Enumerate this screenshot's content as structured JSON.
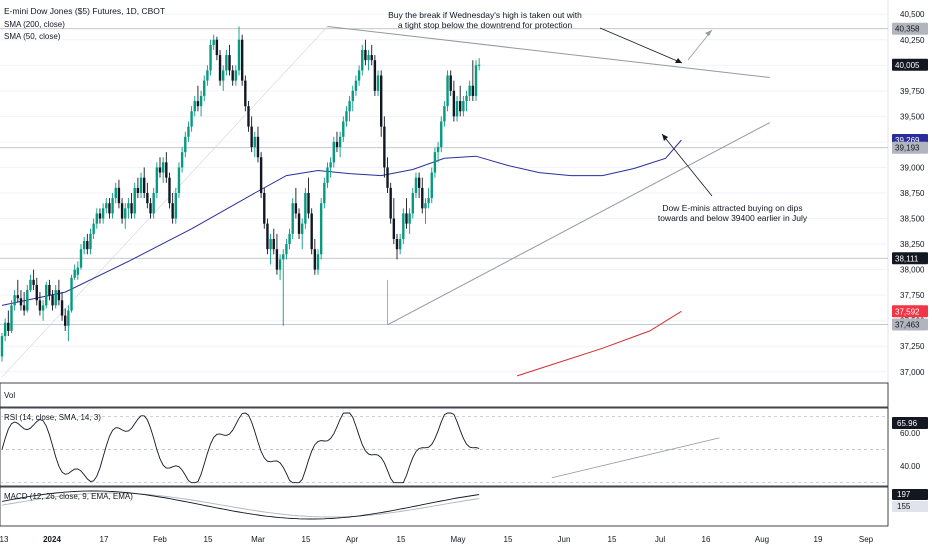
{
  "header": {
    "title": "E-mini Dow Jones ($5) Futures, 1D, CBOT",
    "sma200_label": "SMA (200, close)",
    "sma50_label": "SMA (50, close)"
  },
  "annotations": {
    "top_line1": "Buy the break if Wednesday's high is taken out with",
    "top_line2": "a tight stop below the downtrend for protection",
    "bottom_line1": "Dow E-minis attracted buying on dips",
    "bottom_line2": "towards and below 39400 earlier in July"
  },
  "panels": {
    "vol_label": "Vol",
    "rsi_label": "RSI (14, close, SMA, 14, 3)",
    "rsi_value": "65.96",
    "rsi_ticks": [
      "60.00",
      "40.00"
    ],
    "macd_label": "MACD (12, 26, close, 9, EMA, EMA)",
    "macd_value": "197",
    "signal_value": "155"
  },
  "colors": {
    "up": "#089981",
    "down": "#131722",
    "sma50": "#2a2e9b",
    "sma200": "#d32f2f",
    "trendline": "#9598a1"
  },
  "chart_data": {
    "type": "candlestick",
    "title": "E-mini Dow Jones ($5) Futures, 1D, CBOT",
    "ylim": [
      36900,
      40600
    ],
    "y_ticks": [
      "40,500",
      "40,250",
      "40,000",
      "39,750",
      "39,500",
      "39,250",
      "39,000",
      "38,750",
      "38,500",
      "38,250",
      "38,000",
      "37,750",
      "37,500",
      "37,250",
      "37,000"
    ],
    "price_tags": [
      {
        "label": "40,358",
        "value": 40358,
        "color": "#b2b5be"
      },
      {
        "label": "40,005",
        "value": 40005,
        "color": "#131722"
      },
      {
        "label": "39,269",
        "value": 39269,
        "color": "#2a2e9b"
      },
      {
        "label": "39,193",
        "value": 39193,
        "color": "#b2b5be"
      },
      {
        "label": "38,111",
        "value": 38111,
        "color": "#131722"
      },
      {
        "label": "37,592",
        "value": 37592,
        "color": "#f23645"
      },
      {
        "label": "37,463",
        "value": 37463,
        "color": "#b2b5be"
      }
    ],
    "horizontal_levels": [
      40358,
      39193,
      38111,
      37463
    ],
    "x_ticks": [
      "13",
      "2024",
      "17",
      "Feb",
      "15",
      "Mar",
      "15",
      "Apr",
      "15",
      "May",
      "15",
      "Jun",
      "15",
      "Jul",
      "16",
      "Aug",
      "19",
      "Sep"
    ],
    "trendlines": [
      {
        "name": "downtrend",
        "from": [
          40380,
          103
        ],
        "to": [
          39880,
          243
        ]
      },
      {
        "name": "uptrend",
        "from": [
          37460,
          122
        ],
        "to": [
          39440,
          243
        ]
      }
    ],
    "sma50": [
      [
        0,
        37650
      ],
      [
        20,
        37780
      ],
      [
        40,
        38080
      ],
      [
        60,
        38400
      ],
      [
        80,
        38750
      ],
      [
        90,
        38920
      ],
      [
        100,
        38970
      ],
      [
        110,
        38940
      ],
      [
        120,
        38920
      ],
      [
        130,
        38980
      ],
      [
        140,
        39090
      ],
      [
        150,
        39110
      ],
      [
        160,
        39020
      ],
      [
        170,
        38950
      ],
      [
        180,
        38920
      ],
      [
        190,
        38920
      ],
      [
        200,
        38990
      ],
      [
        210,
        39090
      ],
      [
        215,
        39269
      ]
    ],
    "sma200": [
      [
        163,
        36960
      ],
      [
        175,
        37080
      ],
      [
        190,
        37230
      ],
      [
        205,
        37400
      ],
      [
        215,
        37592
      ]
    ],
    "candles": [
      [
        37150,
        37380,
        37100,
        37350
      ],
      [
        37350,
        37520,
        37300,
        37480
      ],
      [
        37480,
        37600,
        37350,
        37400
      ],
      [
        37400,
        37700,
        37380,
        37650
      ],
      [
        37650,
        37800,
        37600,
        37750
      ],
      [
        37750,
        37900,
        37680,
        37720
      ],
      [
        37720,
        37800,
        37600,
        37650
      ],
      [
        37650,
        37780,
        37550,
        37600
      ],
      [
        37600,
        37850,
        37580,
        37800
      ],
      [
        37800,
        37950,
        37780,
        37900
      ],
      [
        37900,
        38000,
        37800,
        37850
      ],
      [
        37850,
        37920,
        37650,
        37700
      ],
      [
        37700,
        37780,
        37550,
        37600
      ],
      [
        37600,
        37700,
        37500,
        37650
      ],
      [
        37650,
        37880,
        37620,
        37850
      ],
      [
        37850,
        37900,
        37700,
        37750
      ],
      [
        37750,
        37800,
        37600,
        37650
      ],
      [
        37650,
        37850,
        37620,
        37800
      ],
      [
        37800,
        37900,
        37650,
        37700
      ],
      [
        37700,
        37780,
        37500,
        37550
      ],
      [
        37550,
        37620,
        37400,
        37450
      ],
      [
        37450,
        37650,
        37300,
        37600
      ],
      [
        37600,
        37950,
        37580,
        37920
      ],
      [
        37920,
        38050,
        37900,
        38000
      ],
      [
        37950,
        38080,
        37900,
        38020
      ],
      [
        38020,
        38250,
        38000,
        38200
      ],
      [
        38200,
        38320,
        38150,
        38280
      ],
      [
        38280,
        38350,
        38150,
        38200
      ],
      [
        38200,
        38400,
        38150,
        38350
      ],
      [
        38350,
        38500,
        38300,
        38450
      ],
      [
        38450,
        38600,
        38400,
        38550
      ],
      [
        38550,
        38600,
        38450,
        38500
      ],
      [
        38500,
        38650,
        38450,
        38600
      ],
      [
        38600,
        38700,
        38550,
        38650
      ],
      [
        38650,
        38700,
        38500,
        38550
      ],
      [
        38550,
        38750,
        38500,
        38700
      ],
      [
        38700,
        38850,
        38650,
        38800
      ],
      [
        38800,
        38880,
        38600,
        38650
      ],
      [
        38650,
        38700,
        38450,
        38500
      ],
      [
        38500,
        38650,
        38400,
        38600
      ],
      [
        38600,
        38700,
        38500,
        38650
      ],
      [
        38650,
        38750,
        38500,
        38550
      ],
      [
        38550,
        38850,
        38500,
        38800
      ],
      [
        38800,
        38900,
        38700,
        38750
      ],
      [
        38750,
        38950,
        38700,
        38900
      ],
      [
        38900,
        39000,
        38700,
        38750
      ],
      [
        38750,
        38850,
        38600,
        38650
      ],
      [
        38650,
        38700,
        38500,
        38550
      ],
      [
        38550,
        38800,
        38500,
        38750
      ],
      [
        38750,
        39050,
        38700,
        39000
      ],
      [
        39000,
        39100,
        38900,
        38950
      ],
      [
        38950,
        39100,
        38850,
        39050
      ],
      [
        39050,
        39150,
        38850,
        38900
      ],
      [
        38900,
        38950,
        38600,
        38650
      ],
      [
        38650,
        38750,
        38450,
        38500
      ],
      [
        38500,
        38800,
        38450,
        38750
      ],
      [
        38750,
        39050,
        38700,
        39000
      ],
      [
        39000,
        39200,
        38950,
        39150
      ],
      [
        39150,
        39350,
        39100,
        39300
      ],
      [
        39300,
        39450,
        39250,
        39400
      ],
      [
        39400,
        39600,
        39350,
        39550
      ],
      [
        39550,
        39700,
        39500,
        39650
      ],
      [
        39650,
        39800,
        39550,
        39600
      ],
      [
        39600,
        39750,
        39500,
        39700
      ],
      [
        39700,
        39900,
        39650,
        39850
      ],
      [
        39850,
        40000,
        39800,
        39950
      ],
      [
        39950,
        40250,
        39900,
        40200
      ],
      [
        40200,
        40300,
        40150,
        40250
      ],
      [
        40250,
        40280,
        40050,
        40100
      ],
      [
        40100,
        40150,
        39800,
        39850
      ],
      [
        39850,
        40000,
        39750,
        39950
      ],
      [
        39950,
        40150,
        39900,
        40100
      ],
      [
        40100,
        40200,
        39900,
        39950
      ],
      [
        39950,
        40000,
        39800,
        39850
      ],
      [
        39850,
        40000,
        39800,
        39950
      ],
      [
        39950,
        40380,
        39900,
        40250
      ],
      [
        40250,
        40300,
        39800,
        39850
      ],
      [
        39850,
        39900,
        39550,
        39600
      ],
      [
        39600,
        39650,
        39350,
        39400
      ],
      [
        39400,
        39500,
        39150,
        39200
      ],
      [
        39200,
        39350,
        39100,
        39300
      ],
      [
        39300,
        39400,
        39050,
        39100
      ],
      [
        39100,
        39150,
        38700,
        38750
      ],
      [
        38750,
        38800,
        38400,
        38450
      ],
      [
        38450,
        38500,
        38150,
        38200
      ],
      [
        38200,
        38350,
        38050,
        38300
      ],
      [
        38300,
        38400,
        38150,
        38200
      ],
      [
        38200,
        38350,
        37950,
        38000
      ],
      [
        38000,
        38150,
        37900,
        38100
      ],
      [
        38100,
        38200,
        37450,
        38150
      ],
      [
        38150,
        38300,
        38100,
        38250
      ],
      [
        38250,
        38400,
        38200,
        38350
      ],
      [
        38350,
        38700,
        38300,
        38650
      ],
      [
        38650,
        38800,
        38500,
        38550
      ],
      [
        38550,
        38600,
        38300,
        38350
      ],
      [
        38350,
        38500,
        38200,
        38450
      ],
      [
        38450,
        38800,
        38400,
        38750
      ],
      [
        38750,
        38900,
        38500,
        38550
      ],
      [
        38550,
        38600,
        38150,
        38200
      ],
      [
        38200,
        38300,
        37950,
        38000
      ],
      [
        38000,
        38200,
        37950,
        38150
      ],
      [
        38150,
        38700,
        38100,
        38650
      ],
      [
        38650,
        38900,
        38600,
        38850
      ],
      [
        38850,
        39050,
        38800,
        39000
      ],
      [
        39000,
        39100,
        38900,
        39050
      ],
      [
        39050,
        39300,
        39000,
        39250
      ],
      [
        39250,
        39350,
        39150,
        39200
      ],
      [
        39200,
        39350,
        39100,
        39300
      ],
      [
        39300,
        39500,
        39250,
        39450
      ],
      [
        39450,
        39600,
        39400,
        39550
      ],
      [
        39550,
        39700,
        39450,
        39650
      ],
      [
        39650,
        39800,
        39550,
        39750
      ],
      [
        39750,
        39900,
        39700,
        39850
      ],
      [
        39850,
        40000,
        39800,
        39950
      ],
      [
        39950,
        40200,
        39900,
        40150
      ],
      [
        40150,
        40250,
        40000,
        40050
      ],
      [
        40050,
        40150,
        39950,
        40100
      ],
      [
        40100,
        40200,
        40000,
        40050
      ],
      [
        40050,
        40100,
        39700,
        39750
      ],
      [
        39750,
        39950,
        39700,
        39900
      ],
      [
        39900,
        39950,
        39300,
        39400
      ],
      [
        39400,
        39500,
        38900,
        39000
      ],
      [
        39000,
        39100,
        38750,
        38800
      ],
      [
        38800,
        38850,
        38450,
        38500
      ],
      [
        38500,
        38700,
        38250,
        38300
      ],
      [
        38300,
        38350,
        38100,
        38200
      ],
      [
        38200,
        38350,
        38150,
        38300
      ],
      [
        38300,
        38600,
        38250,
        38550
      ],
      [
        38550,
        38700,
        38400,
        38450
      ],
      [
        38450,
        38600,
        38350,
        38550
      ],
      [
        38550,
        38800,
        38500,
        38750
      ],
      [
        38750,
        38950,
        38700,
        38900
      ],
      [
        38900,
        38950,
        38700,
        38800
      ],
      [
        38800,
        38900,
        38550,
        38600
      ],
      [
        38600,
        38700,
        38450,
        38650
      ],
      [
        38650,
        38800,
        38600,
        38700
      ],
      [
        38700,
        39000,
        38650,
        38950
      ],
      [
        38950,
        39193,
        38900,
        39150
      ],
      [
        39150,
        39250,
        39050,
        39200
      ],
      [
        39200,
        39500,
        39150,
        39450
      ],
      [
        39450,
        39650,
        39400,
        39600
      ],
      [
        39600,
        39950,
        39550,
        39900
      ],
      [
        39900,
        39950,
        39700,
        39750
      ],
      [
        39750,
        39850,
        39450,
        39500
      ],
      [
        39500,
        39700,
        39450,
        39650
      ],
      [
        39650,
        39800,
        39500,
        39550
      ],
      [
        39550,
        39700,
        39500,
        39650
      ],
      [
        39650,
        39750,
        39550,
        39700
      ],
      [
        39700,
        39850,
        39650,
        39800
      ],
      [
        39800,
        40050,
        39650,
        39700
      ],
      [
        39700,
        40050,
        39650,
        40000
      ],
      [
        40000,
        40070,
        39950,
        40005
      ]
    ]
  }
}
